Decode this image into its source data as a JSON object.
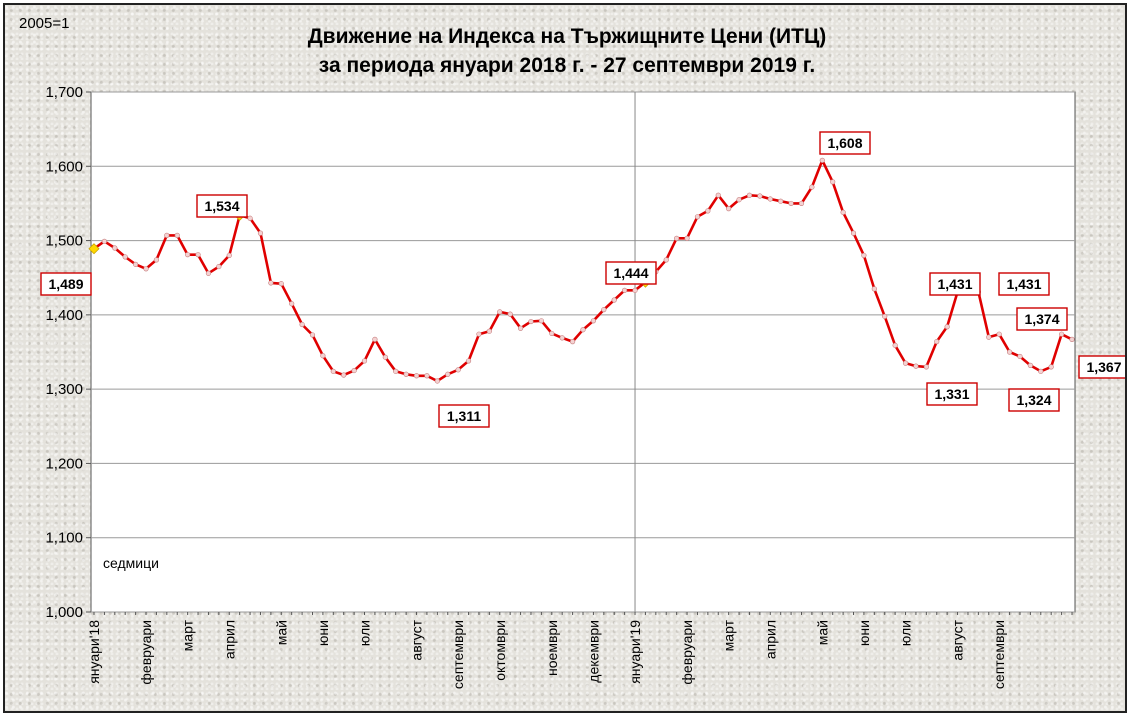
{
  "chart_data": {
    "type": "line",
    "title": "Движение на Индекса на Тържищните Цени (ИТЦ)",
    "subtitle": "за периода януари 2018 г. -  27 септември 2019 г.",
    "base_note": "2005=1",
    "xlabel": "седмици",
    "ylim": [
      1.0,
      1.7
    ],
    "yticks": [
      {
        "value": 1.0,
        "label": "1,000"
      },
      {
        "value": 1.1,
        "label": "1,100"
      },
      {
        "value": 1.2,
        "label": "1,200"
      },
      {
        "value": 1.3,
        "label": "1,300"
      },
      {
        "value": 1.4,
        "label": "1,400"
      },
      {
        "value": 1.5,
        "label": "1,500"
      },
      {
        "value": 1.6,
        "label": "1,600"
      },
      {
        "value": 1.7,
        "label": "1,700"
      }
    ],
    "grid": true,
    "month_labels": [
      {
        "week": 0,
        "label": "януари'18"
      },
      {
        "week": 5,
        "label": "февруари"
      },
      {
        "week": 9,
        "label": "март"
      },
      {
        "week": 13,
        "label": "април"
      },
      {
        "week": 18,
        "label": "май"
      },
      {
        "week": 22,
        "label": "юни"
      },
      {
        "week": 26,
        "label": "юли"
      },
      {
        "week": 31,
        "label": "август"
      },
      {
        "week": 35,
        "label": "септември"
      },
      {
        "week": 39,
        "label": "октомври"
      },
      {
        "week": 44,
        "label": "ноември"
      },
      {
        "week": 48,
        "label": "декември"
      },
      {
        "week": 52,
        "label": "януари'19"
      },
      {
        "week": 57,
        "label": "февруари"
      },
      {
        "week": 61,
        "label": "март"
      },
      {
        "week": 65,
        "label": "април"
      },
      {
        "week": 70,
        "label": "май"
      },
      {
        "week": 74,
        "label": "юни"
      },
      {
        "week": 78,
        "label": "юли"
      },
      {
        "week": 83,
        "label": "август"
      },
      {
        "week": 87,
        "label": "септември"
      }
    ],
    "series": [
      {
        "values": [
          1.489,
          1.499,
          1.49,
          1.478,
          1.468,
          1.462,
          1.474,
          1.507,
          1.507,
          1.481,
          1.481,
          1.456,
          1.465,
          1.48,
          1.534,
          1.53,
          1.51,
          1.443,
          1.442,
          1.415,
          1.387,
          1.373,
          1.345,
          1.324,
          1.319,
          1.325,
          1.338,
          1.367,
          1.343,
          1.324,
          1.32,
          1.318,
          1.318,
          1.311,
          1.32,
          1.326,
          1.338,
          1.374,
          1.378,
          1.404,
          1.401,
          1.382,
          1.391,
          1.392,
          1.375,
          1.369,
          1.364,
          1.38,
          1.392,
          1.407,
          1.42,
          1.433,
          1.433,
          1.444,
          1.458,
          1.474,
          1.503,
          1.503,
          1.532,
          1.54,
          1.561,
          1.543,
          1.555,
          1.561,
          1.56,
          1.556,
          1.553,
          1.55,
          1.55,
          1.572,
          1.608,
          1.579,
          1.538,
          1.51,
          1.48,
          1.435,
          1.398,
          1.359,
          1.335,
          1.331,
          1.33,
          1.364,
          1.384,
          1.431,
          1.43,
          1.431,
          1.37,
          1.374,
          1.35,
          1.344,
          1.332,
          1.324,
          1.33,
          1.374,
          1.367
        ]
      }
    ],
    "highlighted_points": [
      0,
      14,
      53
    ],
    "annotations": [
      {
        "week": 0,
        "text": "1,489"
      },
      {
        "week": 14,
        "text": "1,534"
      },
      {
        "week": 33,
        "text": "1,311"
      },
      {
        "week": 53,
        "text": "1,444"
      },
      {
        "week": 70,
        "text": "1,608"
      },
      {
        "week": 79,
        "text": "1,331"
      },
      {
        "week": 83,
        "text": "1,431"
      },
      {
        "week": 85,
        "text": "1,431"
      },
      {
        "week": 91,
        "text": "1,324"
      },
      {
        "week": 93,
        "text": "1,374"
      },
      {
        "week": 94,
        "text": "1,367"
      }
    ],
    "colors": {
      "line": "#e00000",
      "marker": "#f4d2d2",
      "highlight": "#ffd700",
      "label_border": "#cc0000",
      "divider": "#888888"
    },
    "divider_week": 52
  }
}
